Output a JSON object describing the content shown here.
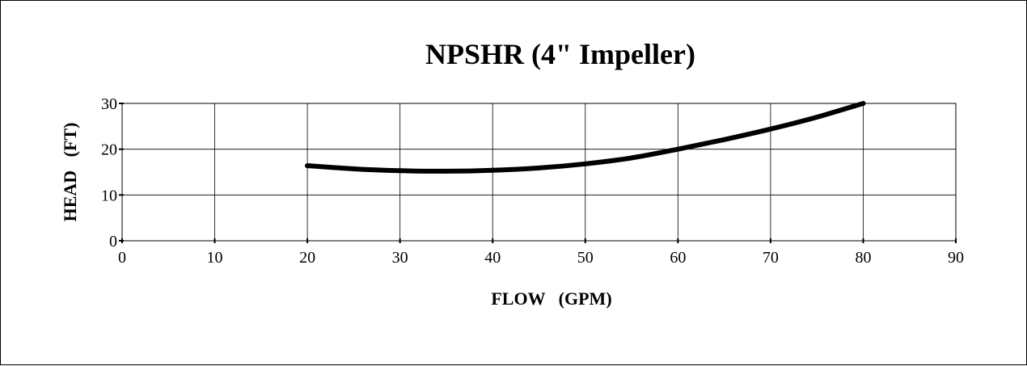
{
  "chart_data": {
    "type": "line",
    "title": "NPSHR (4\" Impeller)",
    "xlabel": "FLOW   (GPM)",
    "ylabel": "HEAD   (FT)",
    "xlim": [
      0,
      90
    ],
    "ylim": [
      0,
      30
    ],
    "x_ticks": [
      0,
      10,
      20,
      30,
      40,
      50,
      60,
      70,
      80,
      90
    ],
    "y_ticks": [
      0,
      10,
      20,
      30
    ],
    "grid": true,
    "legend": "none",
    "series": [
      {
        "color": "#000000",
        "points": [
          {
            "x": 20,
            "y": 16.4
          },
          {
            "x": 25,
            "y": 15.7
          },
          {
            "x": 30,
            "y": 15.3
          },
          {
            "x": 35,
            "y": 15.2
          },
          {
            "x": 40,
            "y": 15.4
          },
          {
            "x": 45,
            "y": 15.9
          },
          {
            "x": 50,
            "y": 16.8
          },
          {
            "x": 55,
            "y": 18.1
          },
          {
            "x": 60,
            "y": 20.0
          },
          {
            "x": 65,
            "y": 22.1
          },
          {
            "x": 70,
            "y": 24.4
          },
          {
            "x": 75,
            "y": 27.0
          },
          {
            "x": 80,
            "y": 30.0
          }
        ]
      }
    ]
  }
}
